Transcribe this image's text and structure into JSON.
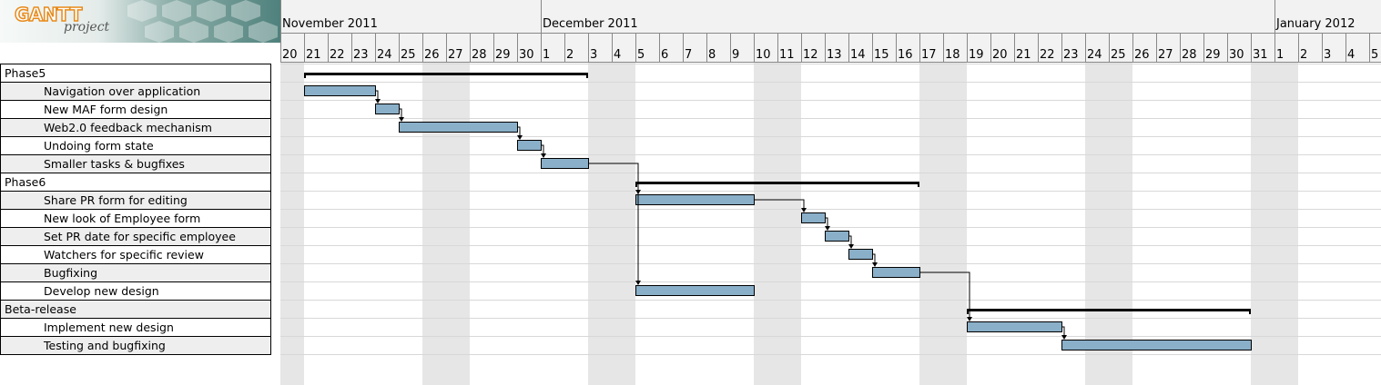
{
  "logo": {
    "brand": "GANTT",
    "subtitle": "project"
  },
  "timeline": {
    "months": [
      {
        "label": "November 2011",
        "first_day_index": 0
      },
      {
        "label": "December 2011",
        "first_day_index": 11
      },
      {
        "label": "January 2012",
        "first_day_index": 42
      }
    ],
    "days": [
      "20",
      "21",
      "22",
      "23",
      "24",
      "25",
      "26",
      "27",
      "28",
      "29",
      "30",
      "1",
      "2",
      "3",
      "4",
      "5",
      "6",
      "7",
      "8",
      "9",
      "10",
      "11",
      "12",
      "13",
      "14",
      "15",
      "16",
      "17",
      "18",
      "19",
      "20",
      "21",
      "22",
      "23",
      "24",
      "25",
      "26",
      "27",
      "28",
      "29",
      "30",
      "31",
      "1",
      "2",
      "3",
      "4",
      "5"
    ],
    "weekend_day_indices": [
      0,
      6,
      7,
      13,
      14,
      20,
      21,
      27,
      28,
      34,
      35,
      41,
      42
    ]
  },
  "tasks": [
    {
      "name": "Phase5",
      "type": "phase",
      "start": 1,
      "end": 13
    },
    {
      "name": "Navigation over application",
      "type": "task",
      "start": 1,
      "end": 4
    },
    {
      "name": "New MAF form design",
      "type": "task",
      "start": 4,
      "end": 5
    },
    {
      "name": "Web2.0 feedback mechanism",
      "type": "task",
      "start": 5,
      "end": 10
    },
    {
      "name": "Undoing form state",
      "type": "task",
      "start": 10,
      "end": 11
    },
    {
      "name": "Smaller tasks & bugfixes",
      "type": "task",
      "start": 11,
      "end": 13
    },
    {
      "name": "Phase6",
      "type": "phase",
      "start": 15,
      "end": 27
    },
    {
      "name": "Share PR form for editing",
      "type": "task",
      "start": 15,
      "end": 20
    },
    {
      "name": "New look of Employee form",
      "type": "task",
      "start": 22,
      "end": 23
    },
    {
      "name": "Set PR date for specific employee",
      "type": "task",
      "start": 23,
      "end": 24
    },
    {
      "name": "Watchers for specific review",
      "type": "task",
      "start": 24,
      "end": 25
    },
    {
      "name": "Bugfixing",
      "type": "task",
      "start": 25,
      "end": 27
    },
    {
      "name": "Develop new design",
      "type": "task",
      "start": 15,
      "end": 20
    },
    {
      "name": "Beta-release",
      "type": "phase",
      "start": 29,
      "end": 41
    },
    {
      "name": "Implement new design",
      "type": "task",
      "start": 29,
      "end": 33
    },
    {
      "name": "Testing and bugfixing",
      "type": "task",
      "start": 33,
      "end": 41
    }
  ],
  "dependencies": [
    [
      1,
      2
    ],
    [
      2,
      3
    ],
    [
      3,
      4
    ],
    [
      4,
      5
    ],
    [
      5,
      7
    ],
    [
      5,
      12
    ],
    [
      7,
      8
    ],
    [
      8,
      9
    ],
    [
      9,
      10
    ],
    [
      10,
      11
    ],
    [
      11,
      14
    ],
    [
      14,
      15
    ]
  ],
  "colors": {
    "task_fill": "#8aafc8",
    "weekend": "#e6e6e6",
    "header_bg": "#f2f2f2",
    "row_alt": "#eeeeee"
  }
}
